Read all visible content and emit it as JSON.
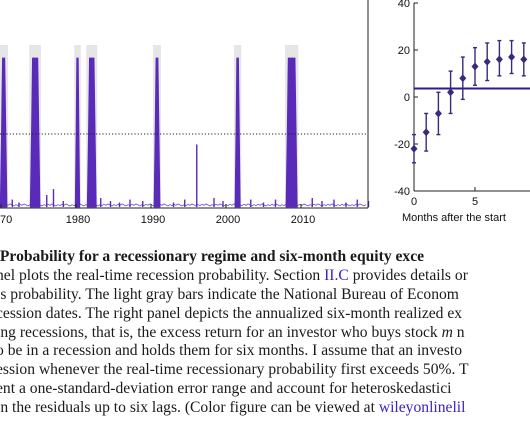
{
  "left_panel": {
    "x_tick_labels": [
      "70",
      "1980",
      "1990",
      "2000",
      "2010"
    ]
  },
  "right_panel": {
    "y_tick_labels": [
      "40",
      "20",
      "0",
      "-20",
      "-40"
    ],
    "x_tick_labels": [
      "0",
      "5",
      "1"
    ],
    "x_axis_label": "Months after the start"
  },
  "chart_data": [
    {
      "type": "area",
      "description": "Real-time recession probability (left panel, cropped)",
      "x_ticks": [
        "70",
        "1980",
        "1990",
        "2000",
        "2010"
      ],
      "y_range": [
        0,
        1
      ],
      "threshold": 0.5,
      "episodes": [
        {
          "start": 1969.9,
          "end": 1970.8,
          "peak": 1.0
        },
        {
          "start": 1973.9,
          "end": 1975.2,
          "peak": 1.0
        },
        {
          "start": 1979.9,
          "end": 1980.5,
          "peak": 1.0
        },
        {
          "start": 1981.5,
          "end": 1982.7,
          "peak": 1.0
        },
        {
          "start": 1990.4,
          "end": 1991.2,
          "peak": 1.0
        },
        {
          "start": 2001.2,
          "end": 2001.9,
          "peak": 1.0
        },
        {
          "start": 2008.0,
          "end": 2009.5,
          "peak": 1.0
        }
      ],
      "line_color": "#5a2ab8",
      "shade_color": "#e6e6e6"
    },
    {
      "type": "scatter",
      "description": "Excess returns with error bars (right panel, cropped)",
      "x": [
        0,
        1,
        2,
        3,
        4,
        5,
        6,
        7,
        8,
        9,
        10
      ],
      "y": [
        -22,
        -15,
        -7,
        2,
        8,
        13,
        15,
        16,
        17,
        16,
        17
      ],
      "err_low": [
        -28,
        -23,
        -16,
        -7,
        -1,
        5,
        7,
        9,
        10,
        9,
        10
      ],
      "err_high": [
        -16,
        -7,
        2,
        11,
        17,
        21,
        23,
        24,
        24,
        23,
        24
      ],
      "hline": 7,
      "ylim": [
        -40,
        40
      ],
      "xlabel": "Months after the start",
      "marker_color": "#3a2a7a",
      "hline_color": "#2a1a9a"
    }
  ],
  "caption": {
    "line1_bold": "Probability for a recessionary regime and six-month equity exce",
    "line2_a": "nel plots the real-time recession probability. Section ",
    "line2_link": "II.C",
    "line2_b": " provides details or",
    "line3": "is probability. The light gray bars indicate the National Bureau of Econom",
    "line4": "cession dates. The right panel depicts the annualized six-month realized ex",
    "line5_a": "ing recessions, that is, the excess return for an investor who buys stock ",
    "line5_italic": "m",
    "line5_b": " n",
    "line6": "o be in a recession and holds them for six months. I assume that an investo",
    "line7": "ession whenever the real-time recessionary probability first exceeds 50%. T",
    "line8": "ent a one-standard-deviation error range and account for heteroskedastici",
    "line9_a": " in the residuals up to six lags. (Color figure can be viewed at ",
    "line9_link": "wileyonlinelil"
  }
}
